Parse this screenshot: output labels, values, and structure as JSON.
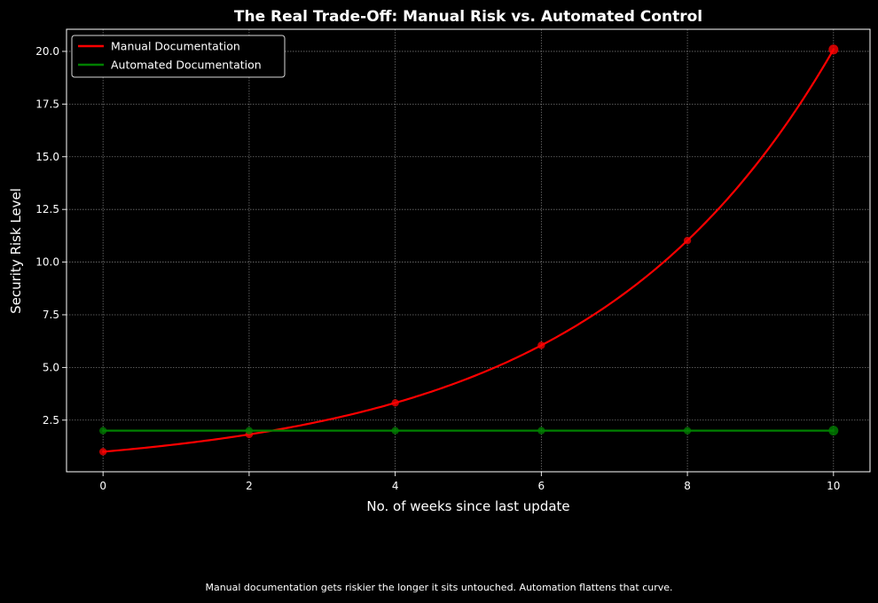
{
  "chart_data": {
    "type": "line",
    "title": "The Real Trade-Off: Manual Risk vs. Automated Control",
    "xlabel": "No. of weeks since last update",
    "ylabel": "Security Risk Level",
    "xlim": [
      -0.5,
      10.5
    ],
    "ylim": [
      0.05,
      21.05
    ],
    "xticks": [
      0,
      2,
      4,
      6,
      8,
      10
    ],
    "xtick_labels": [
      "0",
      "2",
      "4",
      "6",
      "8",
      "10"
    ],
    "yticks": [
      2.5,
      5.0,
      7.5,
      10.0,
      12.5,
      15.0,
      17.5,
      20.0
    ],
    "ytick_labels": [
      "2.5",
      "5.0",
      "7.5",
      "10.0",
      "12.5",
      "15.0",
      "17.5",
      "20.0"
    ],
    "grid": true,
    "legend_position": "top-left",
    "series": [
      {
        "name": "Manual Documentation",
        "color": "#ff0000",
        "curve": "exponential",
        "x": [
          0,
          2,
          4,
          6,
          8,
          10
        ],
        "y": [
          1.0,
          1.82,
          3.32,
          6.05,
          11.02,
          20.09
        ],
        "highlight_last": true
      },
      {
        "name": "Automated Documentation",
        "color": "#008000",
        "curve": "linear",
        "x": [
          0,
          2,
          4,
          6,
          8,
          10
        ],
        "y": [
          2.0,
          2.0,
          2.0,
          2.0,
          2.0,
          2.0
        ],
        "highlight_last": true
      }
    ]
  },
  "caption": "Manual documentation gets riskier the longer it sits untouched. Automation flattens that curve."
}
